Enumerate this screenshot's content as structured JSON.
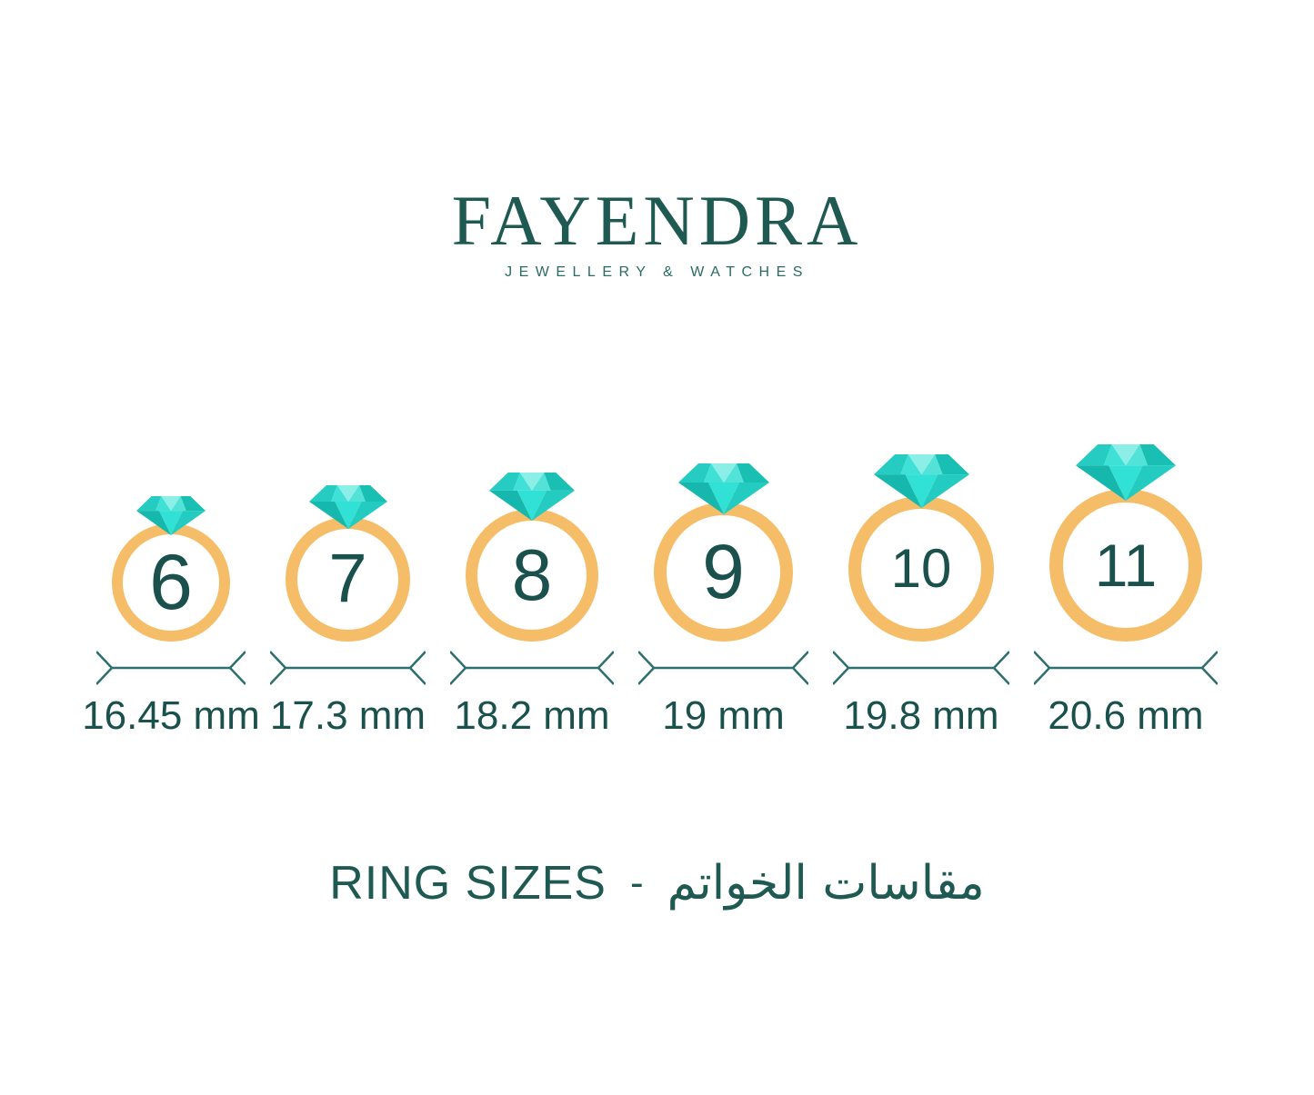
{
  "brand": {
    "name": "FAYENDRA",
    "tagline": "JEWELLERY & WATCHES"
  },
  "rings": [
    {
      "size": "6",
      "diameter_label": "16.45 mm"
    },
    {
      "size": "7",
      "diameter_label": "17.3 mm"
    },
    {
      "size": "8",
      "diameter_label": "18.2 mm"
    },
    {
      "size": "9",
      "diameter_label": "19 mm"
    },
    {
      "size": "10",
      "diameter_label": "19.8 mm"
    },
    {
      "size": "11",
      "diameter_label": "20.6 mm"
    }
  ],
  "footer": {
    "title_en": "RING SIZES",
    "separator": "-",
    "title_ar": "مقاسات الخواتم"
  },
  "colors": {
    "brand_teal": "#1E5A52",
    "text_teal": "#1A514D",
    "band_orange": "#F6BD69",
    "diamond_bright": "#31E1D5",
    "diamond_light": "#8BEFE8",
    "diamond_medium": "#26CCC2",
    "diamond_dark": "#16B8AD",
    "dimension_line": "#2E6F6F"
  }
}
